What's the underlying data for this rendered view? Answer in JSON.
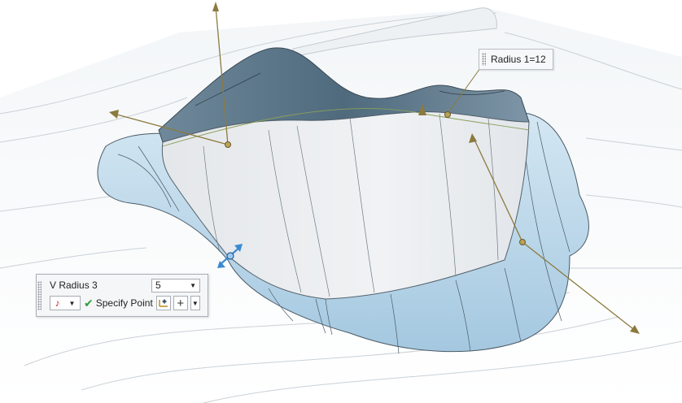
{
  "callout": {
    "text": "Radius 1=12"
  },
  "panel": {
    "label": "V Radius 3",
    "value": "5",
    "specify_point": "Specify Point",
    "icons": {
      "snap": "point-snap-icon",
      "check": "check-icon",
      "point_dialog": "point-dialog-icon",
      "plus": "plus-icon",
      "dropdown": "dropdown-arrow-icon"
    }
  },
  "colors": {
    "background": "#ffffff",
    "surface_blue": "#b8d7ea",
    "wall_grey": "#e9ebee",
    "handle_gold": "#8c7a3e",
    "handle_blue": "#3a8ad3",
    "accent_green": "#2e9e3c",
    "accent_red": "#c0272d"
  }
}
